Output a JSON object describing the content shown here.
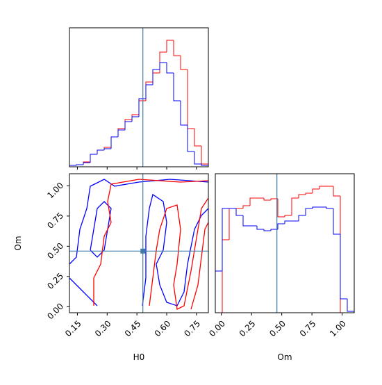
{
  "chart_data": [
    {
      "type": "histogram",
      "xlim": [
        0.11,
        0.81
      ],
      "ylim": [
        0,
        200
      ],
      "xticks": [
        0.15,
        0.3,
        0.45,
        0.6,
        0.75
      ],
      "truth": 0.48,
      "truth_color": "#3e7ba8",
      "bins": [
        0.11,
        0.145,
        0.18,
        0.215,
        0.25,
        0.285,
        0.32,
        0.355,
        0.39,
        0.425,
        0.46,
        0.495,
        0.53,
        0.565,
        0.6,
        0.635,
        0.67,
        0.705,
        0.74,
        0.775,
        0.81
      ],
      "series": [
        {
          "name": "red",
          "color": "#ff0000",
          "values": [
            2,
            3,
            7,
            18,
            24,
            28,
            43,
            55,
            68,
            75,
            95,
            122,
            135,
            165,
            182,
            160,
            140,
            55,
            30,
            4
          ]
        },
        {
          "name": "blue",
          "color": "#0000ff",
          "values": [
            2,
            3,
            6,
            18,
            24,
            26,
            43,
            53,
            65,
            72,
            98,
            118,
            140,
            150,
            135,
            95,
            60,
            22,
            4,
            2
          ]
        }
      ]
    },
    {
      "type": "contour",
      "xlabel": "H0",
      "ylabel": "Om",
      "xlim": [
        0.11,
        0.81
      ],
      "ylim": [
        -0.05,
        1.1
      ],
      "xticks": [
        0.15,
        {
          "value": 0.3,
          "label": "0.30"
        },
        0.45,
        {
          "value": 0.6,
          "label": "0.60"
        },
        0.75
      ],
      "yticks": [
        {
          "value": 0,
          "label": "0.00"
        },
        0.25,
        {
          "value": 0.5,
          "label": "0.50"
        },
        0.75,
        {
          "value": 1,
          "label": "1.00"
        }
      ],
      "truth": [
        0.48,
        0.46
      ],
      "truth_color": "#3e7ba8",
      "series": [
        {
          "color": "#0000ff",
          "x": [
            0.11,
            0.145,
            0.1625,
            0.1975,
            0.215,
            0.285,
            0.3375,
            0.46,
            0.6175,
            0.81
          ],
          "y": [
            0.3525,
            0.41,
            0.64,
            0.8126,
            0.9966,
            1.054,
            0.997,
            1.031,
            1.054,
            1.031
          ]
        },
        {
          "color": "#0000ff",
          "x": [
            0.11,
            0.145,
            0.18,
            0.215,
            0.25
          ],
          "y": [
            0.2375,
            0.18,
            0.1225,
            0.065,
            0.0075
          ]
        },
        {
          "color": "#0000ff",
          "x": [
            0.4775,
            0.495,
            0.495,
            0.5125,
            0.53,
            0.5825,
            0.6,
            0.5825,
            0.5475,
            0.565,
            0.6,
            0.6525,
            0.6875,
            0.705,
            0.74,
            0.775,
            0.81
          ],
          "y": [
            0.0075,
            0.2375,
            0.5826,
            0.8126,
            0.9276,
            0.87,
            0.6976,
            0.4676,
            0.3525,
            0.18,
            0.0363,
            0.0075,
            0.1225,
            0.3525,
            0.64,
            0.755,
            0.8126
          ]
        },
        {
          "color": "#0000ff",
          "x": [
            0.215,
            0.2325,
            0.25,
            0.285,
            0.32,
            0.3025,
            0.285,
            0.25,
            0.215
          ],
          "y": [
            0.4676,
            0.64,
            0.8126,
            0.87,
            0.8126,
            0.64,
            0.4676,
            0.41,
            0.4676
          ]
        },
        {
          "color": "#ff0000",
          "x": [
            0.2325,
            0.2325,
            0.2675,
            0.285,
            0.32,
            0.3025,
            0.32,
            0.46,
            0.67,
            0.81
          ],
          "y": [
            0.0075,
            0.2375,
            0.3525,
            0.5826,
            0.6976,
            0.8701,
            1.0139,
            1.054,
            1.031,
            1.0426
          ]
        },
        {
          "color": "#ff0000",
          "x": [
            0.5125,
            0.53,
            0.5475,
            0.565,
            0.6,
            0.6525,
            0.67,
            0.6525,
            0.635,
            0.6525,
            0.6875,
            0.7225,
            0.7575,
            0.775,
            0.81
          ],
          "y": [
            0.0075,
            0.2375,
            0.4676,
            0.64,
            0.8126,
            0.8414,
            0.64,
            0.3525,
            0.18,
            -0.0213,
            0.0075,
            0.295,
            0.64,
            0.8126,
            0.8988
          ]
        },
        {
          "color": "#ff0000",
          "x": [
            0.7225,
            0.7575,
            0.775,
            0.7925,
            0.81
          ],
          "y": [
            -0.0213,
            0.18,
            0.41,
            0.64,
            0.6976
          ]
        }
      ]
    },
    {
      "type": "histogram",
      "xlabel": "Om",
      "xlim": [
        -0.05,
        1.1
      ],
      "ylim": [
        0,
        200
      ],
      "xticks": [
        {
          "value": 0,
          "label": "0.00"
        },
        0.25,
        {
          "value": 0.5,
          "label": "0.50"
        },
        0.75,
        {
          "value": 1,
          "label": "1.00"
        }
      ],
      "truth": 0.46,
      "truth_color": "#3e7ba8",
      "bins": [
        -0.05,
        0.0075,
        0.065,
        0.1225,
        0.18,
        0.2375,
        0.295,
        0.3525,
        0.41,
        0.4675,
        0.525,
        0.5825,
        0.64,
        0.6975,
        0.755,
        0.8125,
        0.87,
        0.9275,
        0.985,
        1.0425,
        1.1
      ],
      "series": [
        {
          "name": "red",
          "color": "#ff0000",
          "values": [
            0,
            105,
            150,
            150,
            154,
            165,
            165,
            162,
            164,
            138,
            140,
            165,
            170,
            172,
            178,
            182,
            182,
            168,
            0,
            0
          ]
        },
        {
          "name": "blue",
          "color": "#0000ff",
          "values": [
            60,
            150,
            150,
            140,
            125,
            125,
            120,
            118,
            120,
            128,
            132,
            132,
            140,
            150,
            152,
            152,
            150,
            113,
            20,
            2
          ]
        }
      ]
    }
  ]
}
